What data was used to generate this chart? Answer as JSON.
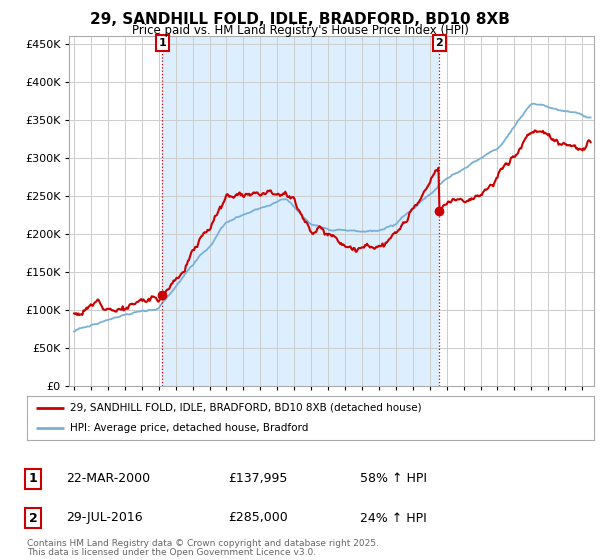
{
  "title": "29, SANDHILL FOLD, IDLE, BRADFORD, BD10 8XB",
  "subtitle": "Price paid vs. HM Land Registry's House Price Index (HPI)",
  "ylim": [
    0,
    460000
  ],
  "yticks": [
    0,
    50000,
    100000,
    150000,
    200000,
    250000,
    300000,
    350000,
    400000,
    450000
  ],
  "xlim_start": 1994.7,
  "xlim_end": 2025.7,
  "red_line_color": "#cc0000",
  "blue_line_color": "#7ab0d4",
  "fill_color": "#ddeeff",
  "marker1_date": 2000.22,
  "marker1_price": 137995,
  "marker2_date": 2016.57,
  "marker2_price": 285000,
  "legend_red_label": "29, SANDHILL FOLD, IDLE, BRADFORD, BD10 8XB (detached house)",
  "legend_blue_label": "HPI: Average price, detached house, Bradford",
  "table_row1": [
    "1",
    "22-MAR-2000",
    "£137,995",
    "58% ↑ HPI"
  ],
  "table_row2": [
    "2",
    "29-JUL-2016",
    "£285,000",
    "24% ↑ HPI"
  ],
  "footer_line1": "Contains HM Land Registry data © Crown copyright and database right 2025.",
  "footer_line2": "This data is licensed under the Open Government Licence v3.0.",
  "background_color": "#ffffff",
  "grid_color": "#cccccc"
}
